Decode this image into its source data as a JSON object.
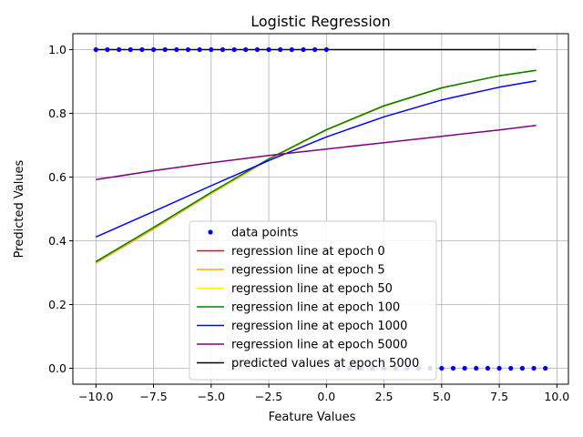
{
  "chart_data": {
    "type": "line",
    "title": "Logistic Regression",
    "xlabel": "Feature Values",
    "ylabel": "Predicted Values",
    "xlim": [
      -11,
      10.5
    ],
    "ylim": [
      -0.05,
      1.05
    ],
    "x_ticks": [
      -10.0,
      -7.5,
      -5.0,
      -2.5,
      0.0,
      2.5,
      5.0,
      7.5,
      10.0
    ],
    "x_tick_labels": [
      "−10.0",
      "−7.5",
      "−5.0",
      "−2.5",
      "0.0",
      "2.5",
      "5.0",
      "7.5",
      "10.0"
    ],
    "y_ticks": [
      0.0,
      0.2,
      0.4,
      0.6,
      0.8,
      1.0
    ],
    "y_tick_labels": [
      "0.0",
      "0.2",
      "0.4",
      "0.6",
      "0.8",
      "1.0"
    ],
    "grid": true,
    "legend_position": "lower-center",
    "data_points": {
      "name": "data points",
      "color": "#0000ff",
      "x": [
        -10,
        -9.5,
        -9,
        -8.5,
        -8,
        -7.5,
        -7,
        -6.5,
        -6,
        -5.5,
        -5,
        -4.5,
        -4,
        -3.5,
        -3,
        -2.5,
        -2,
        -1.5,
        -1,
        -0.5,
        0,
        0.5,
        1,
        1.5,
        2,
        2.5,
        3,
        3.5,
        4,
        4.5,
        5,
        5.5,
        6,
        6.5,
        7,
        7.5,
        8,
        8.5,
        9,
        9.5
      ],
      "y": [
        1,
        1,
        1,
        1,
        1,
        1,
        1,
        1,
        1,
        1,
        1,
        1,
        1,
        1,
        1,
        1,
        1,
        1,
        1,
        1,
        1,
        0,
        0,
        0,
        0,
        0,
        0,
        0,
        0,
        0,
        0,
        0,
        0,
        0,
        0,
        0,
        0,
        0,
        0,
        0
      ]
    },
    "series": [
      {
        "name": "regression line at epoch 0",
        "color": "#ff0000",
        "x": [
          -10,
          -7.5,
          -5,
          -2.5,
          0,
          2.5,
          5,
          7.5,
          9.1
        ],
        "values": [
          0.333,
          0.44,
          0.55,
          0.655,
          0.748,
          0.823,
          0.88,
          0.918,
          0.935
        ]
      },
      {
        "name": "regression line at epoch 5",
        "color": "#ffa500",
        "x": [
          -10,
          -7.5,
          -5,
          -2.5,
          0,
          2.5,
          5,
          7.5,
          9.1
        ],
        "values": [
          0.33,
          0.437,
          0.548,
          0.654,
          0.748,
          0.823,
          0.88,
          0.918,
          0.935
        ]
      },
      {
        "name": "regression line at epoch 50",
        "color": "#ffff00",
        "x": [
          -10,
          -7.5,
          -5,
          -2.5,
          0,
          2.5,
          5,
          7.5,
          9.1
        ],
        "values": [
          0.335,
          0.441,
          0.551,
          0.656,
          0.749,
          0.824,
          0.88,
          0.918,
          0.935
        ]
      },
      {
        "name": "regression line at epoch 100",
        "color": "#008000",
        "x": [
          -10,
          -7.5,
          -5,
          -2.5,
          0,
          2.5,
          5,
          7.5,
          9.1
        ],
        "values": [
          0.335,
          0.442,
          0.552,
          0.657,
          0.749,
          0.824,
          0.88,
          0.918,
          0.935
        ]
      },
      {
        "name": "regression line at epoch 1000",
        "color": "#0000ff",
        "x": [
          -10,
          -7.5,
          -5,
          -2.5,
          0,
          2.5,
          5,
          7.5,
          9.1
        ],
        "values": [
          0.412,
          0.492,
          0.573,
          0.652,
          0.726,
          0.789,
          0.842,
          0.882,
          0.902
        ]
      },
      {
        "name": "regression line at epoch 5000",
        "color": "#800080",
        "x": [
          -10,
          -7.5,
          -5,
          -2.5,
          0,
          2.5,
          5,
          7.5,
          9.1
        ],
        "values": [
          0.592,
          0.62,
          0.645,
          0.668,
          0.688,
          0.708,
          0.728,
          0.748,
          0.762
        ]
      },
      {
        "name": "predicted values at epoch 5000",
        "color": "#000000",
        "x": [
          -10,
          9.1
        ],
        "values": [
          1.0,
          1.0
        ]
      }
    ]
  }
}
